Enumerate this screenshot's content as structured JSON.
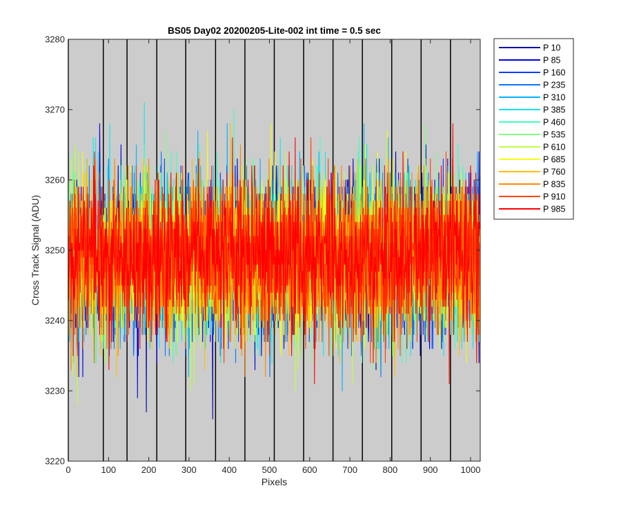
{
  "chart_data": {
    "type": "line",
    "title": "BS05 Day02 20200205-Lite-002 int time = 0.5 sec",
    "xlabel": "Pixels",
    "ylabel": "Cross Track Signal (ADU)",
    "xlim": [
      0,
      1024
    ],
    "ylim": [
      3220,
      3280
    ],
    "xticks": [
      0,
      100,
      200,
      300,
      400,
      500,
      600,
      700,
      800,
      900,
      1000
    ],
    "yticks": [
      3220,
      3230,
      3240,
      3250,
      3260,
      3270,
      3280
    ],
    "x_tick_labels": [
      "0",
      "100",
      "200",
      "300",
      "400",
      "500",
      "600",
      "700",
      "800",
      "900",
      "1000"
    ],
    "y_tick_labels": [
      "3220",
      "3230",
      "3240",
      "3250",
      "3260",
      "3270",
      "3280"
    ],
    "grid": false,
    "plot_background": "#cccccc",
    "vertical_lines_x": [
      0,
      87,
      146,
      220,
      292,
      366,
      439,
      512,
      585,
      658,
      731,
      804,
      877,
      950
    ],
    "mean_signal": 3249,
    "signal_std": 5.5,
    "signal_min": 3223,
    "signal_max": 3276,
    "legend_position": "outside-right-top",
    "series": [
      {
        "name": "P 10",
        "color": "#0000a8"
      },
      {
        "name": "P 85",
        "color": "#0000e0"
      },
      {
        "name": "P 160",
        "color": "#0a3cff"
      },
      {
        "name": "P 235",
        "color": "#0a78ff"
      },
      {
        "name": "P 310",
        "color": "#00b4ff"
      },
      {
        "name": "P 385",
        "color": "#10e8ef"
      },
      {
        "name": "P 460",
        "color": "#40ffbf"
      },
      {
        "name": "P 535",
        "color": "#80ff80"
      },
      {
        "name": "P 610",
        "color": "#bfff40"
      },
      {
        "name": "P 685",
        "color": "#f2ff0d"
      },
      {
        "name": "P 760",
        "color": "#ffc000"
      },
      {
        "name": "P 835",
        "color": "#ff8800"
      },
      {
        "name": "P 910",
        "color": "#ff4400"
      },
      {
        "name": "P 985",
        "color": "#ff0000"
      }
    ]
  }
}
